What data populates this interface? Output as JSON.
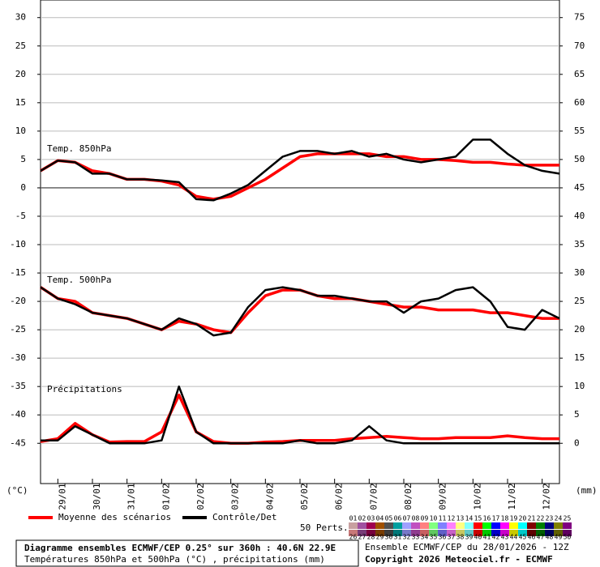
{
  "chart_data": {
    "type": "line",
    "x": [
      0,
      12,
      24,
      36,
      48,
      60,
      72,
      84,
      96,
      108,
      120,
      132,
      144,
      156,
      168,
      180,
      192,
      204,
      216,
      228,
      240,
      252,
      264,
      276,
      288,
      300,
      312,
      324,
      336,
      348,
      360
    ],
    "xlim": [
      0,
      360
    ],
    "xticks": [
      {
        "value": 12,
        "label": "29/01"
      },
      {
        "value": 36,
        "label": "30/01"
      },
      {
        "value": 60,
        "label": "31/01"
      },
      {
        "value": 84,
        "label": "01/02"
      },
      {
        "value": 108,
        "label": "02/02"
      },
      {
        "value": 132,
        "label": "03/02"
      },
      {
        "value": 156,
        "label": "04/02"
      },
      {
        "value": 180,
        "label": "05/02"
      },
      {
        "value": 204,
        "label": "06/02"
      },
      {
        "value": 228,
        "label": "07/02"
      },
      {
        "value": 252,
        "label": "08/02"
      },
      {
        "value": 276,
        "label": "09/02"
      },
      {
        "value": 300,
        "label": "10/02"
      },
      {
        "value": 324,
        "label": "11/02"
      },
      {
        "value": 348,
        "label": "12/02"
      }
    ],
    "ylim": [
      -52.1,
      33.1
    ],
    "yticks": [
      30,
      25,
      20,
      15,
      10,
      5,
      0,
      -5,
      -10,
      -15,
      -20,
      -25,
      -30,
      -35,
      -40,
      -45
    ],
    "y2lim": [
      -7.1,
      78.1
    ],
    "y2ticks": [
      75,
      70,
      65,
      60,
      55,
      50,
      45,
      40,
      35,
      30,
      25,
      20,
      15,
      10,
      5,
      0
    ],
    "y_unit": "(°C)",
    "y2_unit": "(mm)",
    "grid": true,
    "panel_labels": [
      "Temp. 850hPa",
      "Temp. 500hPa",
      "Précipitations"
    ],
    "panel_axis": [
      "y",
      "y",
      "y2"
    ],
    "series": [
      {
        "name": "Moyenne des scénarios",
        "color": "#ff0000",
        "panels": [
          [
            3,
            4.8,
            4.5,
            3,
            2.5,
            1.5,
            1.5,
            1.2,
            0.5,
            -1.5,
            -2,
            -1.5,
            0,
            1.5,
            3.5,
            5.5,
            6,
            6,
            6,
            6,
            5.5,
            5.5,
            5,
            5,
            4.8,
            4.5,
            4.5,
            4.2,
            4,
            4,
            4
          ],
          [
            -17.5,
            -19.5,
            -20,
            -22,
            -22.5,
            -23,
            -24,
            -25,
            -23.5,
            -24,
            -25,
            -25.5,
            -22,
            -19,
            -18,
            -18,
            -19,
            -19.5,
            -19.5,
            -20,
            -20.5,
            -21,
            -21,
            -21.5,
            -21.5,
            -21.5,
            -22,
            -22,
            -22.5,
            -23,
            -23
          ],
          [
            0.3,
            0.8,
            3.5,
            1.5,
            0.2,
            0.3,
            0.3,
            2,
            8.5,
            2,
            0.3,
            0,
            0,
            0.2,
            0.3,
            0.5,
            0.5,
            0.5,
            0.8,
            1,
            1.2,
            1,
            0.8,
            0.8,
            1,
            1,
            1,
            1.3,
            1,
            0.8,
            0.8
          ]
        ]
      },
      {
        "name": "Contrôle/Det",
        "color": "#000000",
        "panels": [
          [
            3,
            4.8,
            4.5,
            2.5,
            2.5,
            1.5,
            1.5,
            1.3,
            1,
            -2,
            -2.2,
            -1,
            0.5,
            3,
            5.5,
            6.5,
            6.5,
            6,
            6.5,
            5.5,
            6,
            5,
            4.5,
            5,
            5.5,
            8.5,
            8.5,
            6,
            4,
            3,
            2.5
          ],
          [
            -17.5,
            -19.5,
            -20.5,
            -22,
            -22.5,
            -23,
            -24,
            -25,
            -23,
            -24,
            -26,
            -25.5,
            -21,
            -18,
            -17.5,
            -18,
            -19,
            -19,
            -19.5,
            -20,
            -20,
            -22,
            -20,
            -19.5,
            -18,
            -17.5,
            -20,
            -24.5,
            -25,
            -21.5,
            -23
          ],
          [
            0.5,
            0.5,
            3,
            1.5,
            0,
            0,
            0,
            0.5,
            10,
            2,
            0,
            0,
            0,
            0,
            0,
            0.5,
            0,
            0,
            0.5,
            3,
            0.5,
            0,
            0,
            0,
            0,
            0,
            0,
            0,
            0,
            0,
            0
          ]
        ]
      }
    ],
    "members_label": "50 Perts.",
    "members": [
      {
        "label": "01",
        "color": "#c8a0a0"
      },
      {
        "label": "02",
        "color": "#a050a0"
      },
      {
        "label": "03",
        "color": "#a00050"
      },
      {
        "label": "04",
        "color": "#a05000"
      },
      {
        "label": "05",
        "color": "#505050"
      },
      {
        "label": "06",
        "color": "#00a0a0"
      },
      {
        "label": "07",
        "color": "#a0a0ff"
      },
      {
        "label": "08",
        "color": "#c050c0"
      },
      {
        "label": "09",
        "color": "#ff8080"
      },
      {
        "label": "10",
        "color": "#80ff80"
      },
      {
        "label": "11",
        "color": "#8080ff"
      },
      {
        "label": "12",
        "color": "#ff80ff"
      },
      {
        "label": "13",
        "color": "#ffff80"
      },
      {
        "label": "14",
        "color": "#80ffff"
      },
      {
        "label": "15",
        "color": "#ff0000"
      },
      {
        "label": "16",
        "color": "#00ff00"
      },
      {
        "label": "17",
        "color": "#0000ff"
      },
      {
        "label": "18",
        "color": "#ff00ff"
      },
      {
        "label": "19",
        "color": "#ffff00"
      },
      {
        "label": "20",
        "color": "#00ffff"
      },
      {
        "label": "21",
        "color": "#800000"
      },
      {
        "label": "22",
        "color": "#008000"
      },
      {
        "label": "23",
        "color": "#000080"
      },
      {
        "label": "24",
        "color": "#808000"
      },
      {
        "label": "25",
        "color": "#800080"
      },
      {
        "label": "26",
        "color": "#c87878"
      },
      {
        "label": "27",
        "color": "#783c78"
      },
      {
        "label": "28",
        "color": "#78003c"
      },
      {
        "label": "29",
        "color": "#783c00"
      },
      {
        "label": "30",
        "color": "#3c3c3c"
      },
      {
        "label": "31",
        "color": "#007878"
      },
      {
        "label": "32",
        "color": "#7878c8"
      },
      {
        "label": "33",
        "color": "#903c90"
      },
      {
        "label": "34",
        "color": "#c86060"
      },
      {
        "label": "35",
        "color": "#60c860"
      },
      {
        "label": "36",
        "color": "#6060c8"
      },
      {
        "label": "37",
        "color": "#c860c8"
      },
      {
        "label": "38",
        "color": "#c8c860"
      },
      {
        "label": "39",
        "color": "#60c8c8"
      },
      {
        "label": "40",
        "color": "#c80000"
      },
      {
        "label": "41",
        "color": "#00c800"
      },
      {
        "label": "42",
        "color": "#0000c8"
      },
      {
        "label": "43",
        "color": "#c800c8"
      },
      {
        "label": "44",
        "color": "#c8c800"
      },
      {
        "label": "45",
        "color": "#00c8c8"
      },
      {
        "label": "46",
        "color": "#600000"
      },
      {
        "label": "47",
        "color": "#006000"
      },
      {
        "label": "48",
        "color": "#000060"
      },
      {
        "label": "49",
        "color": "#606000"
      },
      {
        "label": "50",
        "color": "#600060"
      }
    ],
    "footer_title": "Diagramme ensembles ECMWF/CEP 0.25° sur 360h : 40.6N 22.9E",
    "footer_subtitle": "Températures 850hPa et 500hPa (°C) , précipitations (mm)",
    "run_info": "Ensemble ECMWF/CEP du 28/01/2026 - 12Z",
    "copyright": "Copyright 2026 Meteociel.fr - ECMWF"
  }
}
